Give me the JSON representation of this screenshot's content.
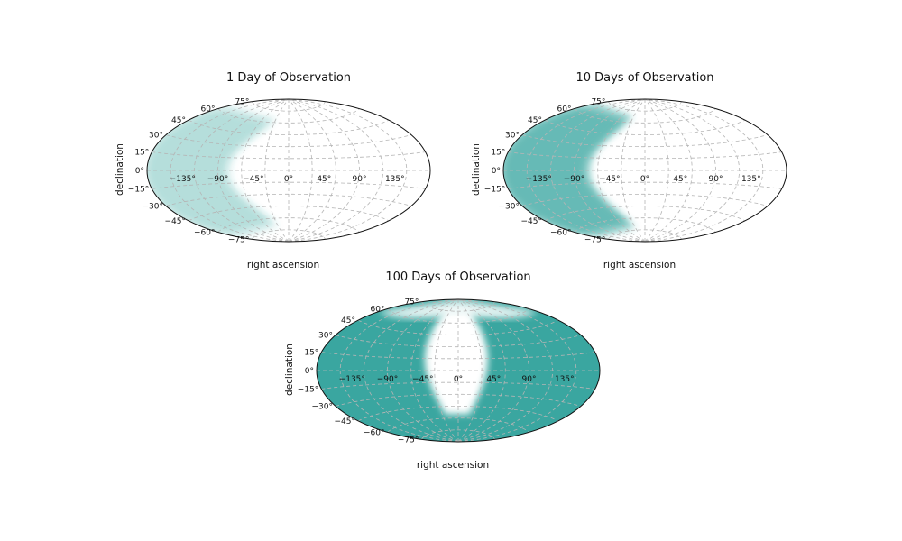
{
  "chart_data": [
    {
      "type": "sky-map",
      "projection": "aitoff",
      "title": "1 Day of Observation",
      "xlabel": "right ascension",
      "ylabel": "declination",
      "ra_ticks": [
        "−135°",
        "−90°",
        "−45°",
        "0°",
        "45°",
        "90°",
        "135°"
      ],
      "dec_ticks": [
        "−75°",
        "−60°",
        "−45°",
        "−30°",
        "−15°",
        "0°",
        "15°",
        "30°",
        "45°",
        "60°",
        "75°"
      ],
      "coverage": {
        "color": "#3aa6a0",
        "ra_min": -180,
        "ra_edge_min": -75,
        "ra_edge_max": -30,
        "dec_limit_low": -70,
        "dec_limit_high": 65,
        "opacity": 0.22
      }
    },
    {
      "type": "sky-map",
      "projection": "aitoff",
      "title": "10 Days of Observation",
      "xlabel": "right ascension",
      "ylabel": "declination",
      "ra_ticks": [
        "−135°",
        "−90°",
        "−45°",
        "0°",
        "45°",
        "90°",
        "135°"
      ],
      "dec_ticks": [
        "−75°",
        "−60°",
        "−45°",
        "−30°",
        "−15°",
        "0°",
        "15°",
        "30°",
        "45°",
        "60°",
        "75°"
      ],
      "coverage": {
        "color": "#3aa6a0",
        "ra_min": -180,
        "ra_edge_min": -70,
        "ra_edge_max": -30,
        "dec_limit_low": -72,
        "dec_limit_high": 70,
        "opacity": 0.55
      }
    },
    {
      "type": "sky-map",
      "projection": "aitoff",
      "title": "100 Days of Observation",
      "xlabel": "right ascension",
      "ylabel": "declination",
      "ra_ticks": [
        "−135°",
        "−90°",
        "−45°",
        "0°",
        "45°",
        "90°",
        "135°"
      ],
      "dec_ticks": [
        "−75°",
        "−60°",
        "−45°",
        "−30°",
        "−15°",
        "0°",
        "15°",
        "30°",
        "45°",
        "60°",
        "75°"
      ],
      "coverage": {
        "color": "#3aa6a0",
        "uncovered_ra_min": -45,
        "uncovered_ra_max": 40,
        "uncovered_dec_min": -55,
        "uncovered_dec_max": 75,
        "opacity": 1.0
      }
    }
  ]
}
